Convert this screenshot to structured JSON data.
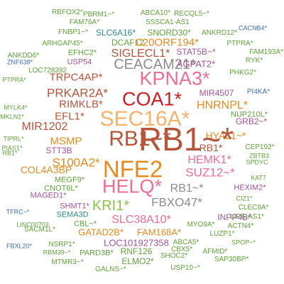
{
  "word_cloud": {
    "words": [
      {
        "text": "RBFOX2*",
        "color": "#5fa33a"
      },
      {
        "text": "PBRM1~*",
        "color": "#5fa33a"
      },
      {
        "text": "ABCA10*",
        "color": "#5fa33a"
      },
      {
        "text": "RECQL5~*",
        "color": "#5fa33a"
      },
      {
        "text": "FAM76A*",
        "color": "#5fa33a"
      },
      {
        "text": "SSSCA1-AS1",
        "color": "#5fa33a"
      },
      {
        "text": "CACNB4*",
        "color": "#3f6fb5"
      },
      {
        "text": "FNBP1~*",
        "color": "#5fa33a"
      },
      {
        "text": "SLC6A16*",
        "color": "#2a8a8a"
      },
      {
        "text": "SNORD30*",
        "color": "#5fa33a"
      },
      {
        "text": "ANKRD12*",
        "color": "#5fa33a"
      },
      {
        "text": "ARHGAP45*",
        "color": "#5fa33a"
      },
      {
        "text": "DCAF12",
        "color": "#5fa33a"
      },
      {
        "text": "C20ORF194*",
        "color": "#e8891d"
      },
      {
        "text": "PTPRA*",
        "color": "#5fa33a"
      },
      {
        "text": "FAM193A*",
        "color": "#5fa33a"
      },
      {
        "text": "ANKDD6*",
        "color": "#5fa33a"
      },
      {
        "text": "EFHC2*",
        "color": "#5fa33a"
      },
      {
        "text": "SIGLECL1*",
        "color": "#b5553a"
      },
      {
        "text": "STAT5B~*",
        "color": "#a5539a"
      },
      {
        "text": "ZNF638*",
        "color": "#3f6fb5"
      },
      {
        "text": "USP54",
        "color": "#a5539a"
      },
      {
        "text": "CEACAM21*",
        "color": "#8c8c8c"
      },
      {
        "text": "AGPAT2*",
        "color": "#a5539a"
      },
      {
        "text": "RYK*",
        "color": "#5fa33a"
      },
      {
        "text": "LOC728392",
        "color": "#5fa33a"
      },
      {
        "text": "PHKG2*",
        "color": "#5fa33a"
      },
      {
        "text": "PTPRA*",
        "color": "#5fa33a"
      },
      {
        "text": "TRPC4AP*",
        "color": "#b5553a"
      },
      {
        "text": "KPNA3*",
        "color": "#f06c91"
      },
      {
        "text": "MIR4507",
        "color": "#a5539a"
      },
      {
        "text": "PI4KA*",
        "color": "#3f6fb5"
      },
      {
        "text": "PRKAR2A*",
        "color": "#b5553a"
      },
      {
        "text": "COA1*",
        "color": "#d11a26"
      },
      {
        "text": "RIMKLB*",
        "color": "#b5553a"
      },
      {
        "text": "HNRNPL*",
        "color": "#e8891d"
      },
      {
        "text": "NUP210L*",
        "color": "#5fa33a"
      },
      {
        "text": "MYLK4*",
        "color": "#5fa33a"
      },
      {
        "text": "MKLN1*",
        "color": "#5fa33a"
      },
      {
        "text": "EFL1*",
        "color": "#b5553a"
      },
      {
        "text": "SEC16A*",
        "color": "#f6b26b"
      },
      {
        "text": "GRB2~*",
        "color": "#a5539a"
      },
      {
        "text": "MIR1202",
        "color": "#b5553a"
      },
      {
        "text": "HYAL1~*",
        "color": "#e8891d"
      },
      {
        "text": "TIPRL*",
        "color": "#5fa33a"
      },
      {
        "text": "PIAS1*",
        "color": "#5fa33a"
      },
      {
        "text": "MSMP",
        "color": "#e8891d"
      },
      {
        "text": "RB1~*",
        "color": "#b5553a"
      },
      {
        "text": "CEP192*",
        "color": "#5fa33a"
      },
      {
        "text": "RB1*",
        "color": "#5fa33a"
      },
      {
        "text": "STT3B",
        "color": "#a5539a"
      },
      {
        "text": "ZBTB3",
        "color": "#5fa33a"
      },
      {
        "text": "RB1*",
        "color": "#b5553a"
      },
      {
        "text": "COL4A3BP",
        "color": "#e8891d"
      },
      {
        "text": "S100A2*",
        "color": "#e8891d"
      },
      {
        "text": "HEMK1*",
        "color": "#f06c91"
      },
      {
        "text": "SPDYC",
        "color": "#5fa33a"
      },
      {
        "text": "NFE2",
        "color": "#e8891d"
      },
      {
        "text": "MEGF9*",
        "color": "#5fa33a"
      },
      {
        "text": "SUZ12~*",
        "color": "#f06c91"
      },
      {
        "text": "CNOT6L*",
        "color": "#5fa33a"
      },
      {
        "text": "KAT7",
        "color": "#5fa33a"
      },
      {
        "text": "MAGED1*",
        "color": "#a5539a"
      },
      {
        "text": "HELQ*",
        "color": "#f06c91"
      },
      {
        "text": "RB1~*",
        "color": "#8c8c8c"
      },
      {
        "text": "HEXIM2*",
        "color": "#a5539a"
      },
      {
        "text": "CIZ1*",
        "color": "#5fa33a"
      },
      {
        "text": "SHMT1*",
        "color": "#a5539a"
      },
      {
        "text": "KRI1*",
        "color": "#8bc34a"
      },
      {
        "text": "FBXO47*",
        "color": "#8c8c8c"
      },
      {
        "text": "TFRC~*",
        "color": "#3f6fb5"
      },
      {
        "text": "SEMA3D",
        "color": "#2a8a8a"
      },
      {
        "text": "CLEC9A*",
        "color": "#5fa33a"
      },
      {
        "text": "INPP4B*",
        "color": "#a5539a"
      },
      {
        "text": "LIPE-AS1*",
        "color": "#5fa33a"
      },
      {
        "text": "LINC00703",
        "color": "#5fa33a"
      },
      {
        "text": "CBL~*",
        "color": "#5fa33a"
      },
      {
        "text": "SLC38A10*",
        "color": "#f06c91"
      },
      {
        "text": "MYO9A*",
        "color": "#5fa33a"
      },
      {
        "text": "ACTN4*",
        "color": "#5fa33a"
      },
      {
        "text": "SACM1L*",
        "color": "#5fa33a"
      },
      {
        "text": "GATAD2B*",
        "color": "#e8891d"
      },
      {
        "text": "FAM168A*",
        "color": "#e8891d"
      },
      {
        "text": "LUZP1*",
        "color": "#5fa33a"
      },
      {
        "text": "FBXL20*",
        "color": "#3f6fb5"
      },
      {
        "text": "NSRP1*",
        "color": "#5fa33a"
      },
      {
        "text": "LOC101927358",
        "color": "#a5539a"
      },
      {
        "text": "ABCA5*",
        "color": "#5fa33a"
      },
      {
        "text": "SPOP~*",
        "color": "#5fa33a"
      },
      {
        "text": "RBM39~*",
        "color": "#5fa33a"
      },
      {
        "text": "PARD3B*",
        "color": "#5fa33a"
      },
      {
        "text": "RNF126",
        "color": "#5fa33a"
      },
      {
        "text": "CBX5*",
        "color": "#5fa33a"
      },
      {
        "text": "AFMID*",
        "color": "#5fa33a"
      },
      {
        "text": "MTMR3~*",
        "color": "#5fa33a"
      },
      {
        "text": "ELMO2*",
        "color": "#5fa33a"
      },
      {
        "text": "SHOC2*",
        "color": "#5fa33a"
      },
      {
        "text": "SAP30BP*",
        "color": "#5fa33a"
      },
      {
        "text": "GALNS~*",
        "color": "#5fa33a"
      },
      {
        "text": "USP10~*",
        "color": "#5fa33a"
      },
      {
        "text": "RB1~*",
        "color": "#b5553a"
      }
    ]
  }
}
